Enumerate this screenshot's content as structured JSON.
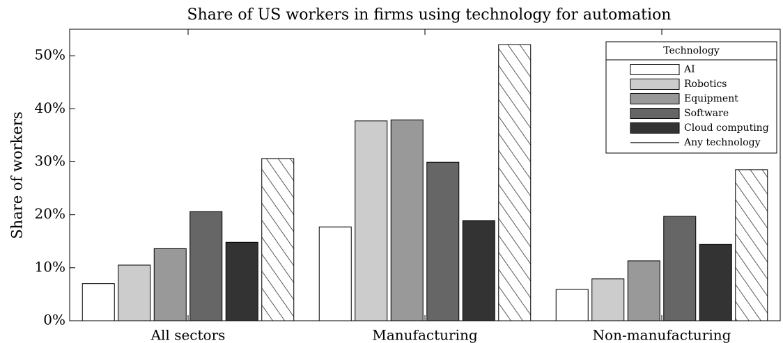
{
  "chart_data": {
    "type": "bar",
    "title": "Share of US workers in firms using technology for automation",
    "y_label": "Share of workers",
    "categories": [
      "All sectors",
      "Manufacturing",
      "Non-manufacturing"
    ],
    "series": [
      {
        "name": "AI",
        "color": "#ffffff",
        "values": [
          7.0,
          17.7,
          5.9
        ]
      },
      {
        "name": "Robotics",
        "color": "#cccccc",
        "values": [
          10.5,
          37.7,
          7.9
        ]
      },
      {
        "name": "Equipment",
        "color": "#999999",
        "values": [
          13.6,
          37.9,
          11.3
        ]
      },
      {
        "name": "Software",
        "color": "#666666",
        "values": [
          20.6,
          29.9,
          19.7
        ]
      },
      {
        "name": "Cloud computing",
        "color": "#333333",
        "values": [
          14.8,
          18.9,
          14.4
        ]
      },
      {
        "name": "Any technology",
        "color": "#ffffff",
        "pattern": "hatch",
        "values": [
          30.6,
          52.1,
          28.5
        ]
      }
    ],
    "ylim": [
      0,
      55
    ],
    "yticks": [
      {
        "value": 0,
        "label": "0%"
      },
      {
        "value": 10,
        "label": "10%"
      },
      {
        "value": 20,
        "label": "20%"
      },
      {
        "value": 30,
        "label": "30%"
      },
      {
        "value": 40,
        "label": "40%"
      },
      {
        "value": 50,
        "label": "50%"
      }
    ],
    "legend_title": "Technology",
    "legend": "upper right"
  }
}
